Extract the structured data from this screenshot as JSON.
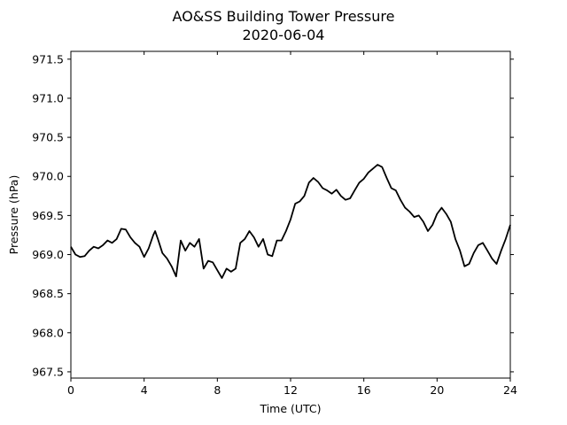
{
  "chart_data": {
    "type": "line",
    "title": "AO&SS Building Tower Pressure",
    "subtitle": "2020-06-04",
    "xlabel": "Time (UTC)",
    "ylabel": "Pressure (hPa)",
    "xlim": [
      0,
      24
    ],
    "ylim": [
      967.42,
      971.6
    ],
    "xticks": [
      0,
      4,
      8,
      12,
      16,
      20,
      24
    ],
    "yticks": [
      967.5,
      968.0,
      968.5,
      969.0,
      969.5,
      970.0,
      970.5,
      971.0,
      971.5
    ],
    "ytick_labels": [
      "967.5",
      "968.0",
      "968.5",
      "969.0",
      "969.5",
      "970.0",
      "970.5",
      "971.0",
      "971.5"
    ],
    "grid": false,
    "series": [
      {
        "color": "#000000",
        "x": [
          0,
          0.25,
          0.5,
          0.75,
          1.0,
          1.25,
          1.5,
          1.75,
          2.0,
          2.25,
          2.5,
          2.75,
          3.0,
          3.25,
          3.5,
          3.75,
          4.0,
          4.25,
          4.5,
          4.6,
          4.75,
          5.0,
          5.25,
          5.5,
          5.75,
          6.0,
          6.25,
          6.5,
          6.75,
          7.0,
          7.25,
          7.5,
          7.75,
          8.0,
          8.25,
          8.5,
          8.75,
          9.0,
          9.25,
          9.5,
          9.75,
          10.0,
          10.25,
          10.5,
          10.75,
          11.0,
          11.25,
          11.5,
          11.75,
          12.0,
          12.25,
          12.5,
          12.75,
          13.0,
          13.25,
          13.5,
          13.75,
          14.0,
          14.25,
          14.5,
          14.75,
          15.0,
          15.25,
          15.5,
          15.75,
          16.0,
          16.25,
          16.5,
          16.75,
          17.0,
          17.25,
          17.5,
          17.75,
          18.0,
          18.25,
          18.5,
          18.75,
          19.0,
          19.25,
          19.5,
          19.75,
          20.0,
          20.25,
          20.5,
          20.75,
          21.0,
          21.25,
          21.5,
          21.75,
          22.0,
          22.25,
          22.5,
          22.75,
          23.0,
          23.25,
          23.5,
          23.75,
          24.0
        ],
        "y": [
          969.1,
          969.0,
          968.97,
          968.98,
          969.05,
          969.1,
          969.08,
          969.12,
          969.18,
          969.15,
          969.2,
          969.33,
          969.32,
          969.22,
          969.15,
          969.1,
          968.97,
          969.08,
          969.25,
          969.3,
          969.2,
          969.02,
          968.95,
          968.85,
          968.72,
          969.18,
          969.05,
          969.15,
          969.1,
          969.2,
          968.82,
          968.92,
          968.9,
          968.8,
          968.7,
          968.82,
          968.78,
          968.82,
          969.15,
          969.2,
          969.3,
          969.22,
          969.1,
          969.2,
          969.0,
          968.98,
          969.18,
          969.18,
          969.3,
          969.45,
          969.65,
          969.68,
          969.75,
          969.92,
          969.98,
          969.93,
          969.85,
          969.82,
          969.78,
          969.83,
          969.75,
          969.7,
          969.72,
          969.82,
          969.92,
          969.97,
          970.05,
          970.1,
          970.15,
          970.12,
          969.98,
          969.85,
          969.82,
          969.7,
          969.6,
          969.55,
          969.48,
          969.5,
          969.42,
          969.3,
          969.38,
          969.52,
          969.6,
          969.52,
          969.42,
          969.2,
          969.05,
          968.85,
          968.88,
          969.02,
          969.12,
          969.15,
          969.05,
          968.95,
          968.88,
          969.05,
          969.2,
          969.38
        ]
      }
    ]
  }
}
